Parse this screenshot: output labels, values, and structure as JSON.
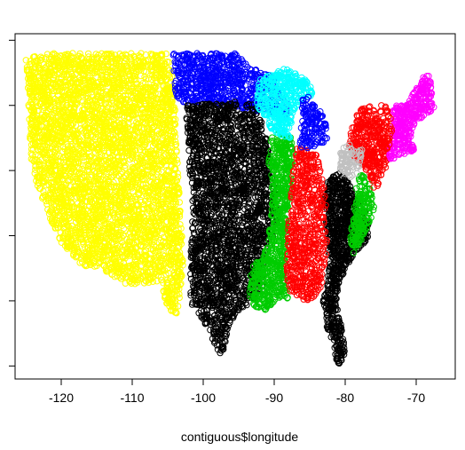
{
  "chart_data": {
    "type": "scatter",
    "title": "",
    "xlabel": "contiguous$longitude",
    "ylabel": "",
    "xlim": [
      -126.5,
      -64.5
    ],
    "ylim": [
      24.0,
      50.5
    ],
    "x_ticks": [
      -120,
      -110,
      -100,
      -90,
      -80,
      -70
    ],
    "x_tick_labels": [
      "-120",
      "-110",
      "-100",
      "-90",
      "-80",
      "-70"
    ],
    "y_ticks": [
      25,
      30,
      35,
      40,
      45,
      50
    ],
    "y_tick_labels_visible": false,
    "marker": "open-circle",
    "grid": false,
    "series": [
      {
        "color": "#FFFF00",
        "region_polygon": [
          [
            -125,
            48.5
          ],
          [
            -123,
            49.0
          ],
          [
            -105,
            49.0
          ],
          [
            -104,
            46
          ],
          [
            -103.8,
            42
          ],
          [
            -103.3,
            38
          ],
          [
            -102.8,
            33
          ],
          [
            -103.5,
            29
          ],
          [
            -105,
            29.3
          ],
          [
            -106,
            31.5
          ],
          [
            -108.5,
            31.3
          ],
          [
            -111,
            31.3
          ],
          [
            -114.5,
            32.5
          ],
          [
            -117,
            32.7
          ],
          [
            -120,
            34.5
          ],
          [
            -121.7,
            36.5
          ],
          [
            -123.5,
            39
          ],
          [
            -124.3,
            41
          ],
          [
            -124.5,
            44
          ],
          [
            -124.8,
            47
          ]
        ]
      },
      {
        "color": "#0000FF",
        "region_polygon": [
          [
            -104.3,
            49.0
          ],
          [
            -95.5,
            49.0
          ],
          [
            -94.8,
            48.6
          ],
          [
            -92,
            47.5
          ],
          [
            -90.5,
            47.4
          ],
          [
            -89.3,
            46.5
          ],
          [
            -88,
            45
          ],
          [
            -88.3,
            44
          ],
          [
            -92,
            44.5
          ],
          [
            -96.5,
            45
          ],
          [
            -100,
            45.2
          ],
          [
            -103.8,
            45.2
          ]
        ]
      },
      {
        "color": "#000000",
        "region_polygon": [
          [
            -102.5,
            45.0
          ],
          [
            -95.5,
            45.3
          ],
          [
            -92.5,
            45.0
          ],
          [
            -91.3,
            43
          ],
          [
            -90.5,
            41
          ],
          [
            -89.6,
            38
          ],
          [
            -89.5,
            36
          ],
          [
            -91.2,
            33
          ],
          [
            -91.8,
            30.5
          ],
          [
            -93.5,
            29.8
          ],
          [
            -95,
            29.3
          ],
          [
            -96.5,
            28
          ],
          [
            -97,
            26.5
          ],
          [
            -97.3,
            25.9
          ],
          [
            -98,
            26
          ],
          [
            -99,
            27.5
          ],
          [
            -100.5,
            29
          ],
          [
            -101.5,
            29.5
          ],
          [
            -102,
            31
          ],
          [
            -101.5,
            37
          ],
          [
            -102,
            41
          ]
        ]
      },
      {
        "color": "#000000",
        "region_polygon": [
          [
            -82.5,
            39.3
          ],
          [
            -80.5,
            39.9
          ],
          [
            -79.5,
            39
          ],
          [
            -78,
            37.3
          ],
          [
            -77,
            36.8
          ],
          [
            -76.5,
            35.3
          ],
          [
            -77,
            34.6
          ],
          [
            -78.5,
            33.8
          ],
          [
            -80,
            32.5
          ],
          [
            -81,
            31
          ],
          [
            -81.3,
            29.8
          ],
          [
            -80.3,
            27.5
          ],
          [
            -80.1,
            26
          ],
          [
            -80.4,
            25.2
          ],
          [
            -81.1,
            25.2
          ],
          [
            -81.7,
            26.5
          ],
          [
            -82.6,
            28
          ],
          [
            -82.8,
            29
          ],
          [
            -83.2,
            30
          ],
          [
            -82.5,
            31
          ],
          [
            -82.3,
            33
          ],
          [
            -82.7,
            36
          ],
          [
            -83.1,
            38
          ]
        ]
      },
      {
        "color": "#00CC00",
        "region_polygon": [
          [
            -88.8,
            43.0
          ],
          [
            -87.6,
            42.5
          ],
          [
            -87.3,
            41
          ],
          [
            -87.8,
            38
          ],
          [
            -88.2,
            36
          ],
          [
            -88.4,
            34
          ],
          [
            -88.5,
            31.5
          ],
          [
            -88.1,
            30.2
          ],
          [
            -89.5,
            30.2
          ],
          [
            -91.2,
            29.3
          ],
          [
            -92.8,
            29.5
          ],
          [
            -93.5,
            30.5
          ],
          [
            -93.2,
            32.5
          ],
          [
            -91.5,
            33.5
          ],
          [
            -90.5,
            36
          ],
          [
            -90.3,
            38.5
          ],
          [
            -90.8,
            40.5
          ],
          [
            -90.5,
            42.5
          ]
        ]
      },
      {
        "color": "#00CC00",
        "region_polygon": [
          [
            -78.0,
            39.7
          ],
          [
            -76.8,
            39.5
          ],
          [
            -76.2,
            38
          ],
          [
            -75.8,
            37
          ],
          [
            -76.3,
            36
          ],
          [
            -77.5,
            35
          ],
          [
            -78,
            34
          ],
          [
            -79,
            33.5
          ],
          [
            -79.3,
            35
          ],
          [
            -78.8,
            37
          ],
          [
            -78.6,
            38.6
          ]
        ]
      },
      {
        "color": "#FF0000",
        "region_polygon": [
          [
            -86.8,
            41.7
          ],
          [
            -85.0,
            41.8
          ],
          [
            -84.2,
            41.6
          ],
          [
            -83.5,
            40.5
          ],
          [
            -82.9,
            39
          ],
          [
            -82.6,
            36
          ],
          [
            -82.5,
            34
          ],
          [
            -82.9,
            32.8
          ],
          [
            -83.3,
            31.3
          ],
          [
            -84,
            30.4
          ],
          [
            -85.5,
            30
          ],
          [
            -86.8,
            30.3
          ],
          [
            -87.8,
            30.7
          ],
          [
            -88.3,
            32
          ],
          [
            -88.1,
            35
          ],
          [
            -87.8,
            38
          ],
          [
            -87.4,
            40
          ]
        ]
      },
      {
        "color": "#FF0000",
        "region_polygon": [
          [
            -78.0,
            44.7
          ],
          [
            -76.0,
            45.0
          ],
          [
            -75.3,
            44
          ],
          [
            -74.5,
            42
          ],
          [
            -74.0,
            41
          ],
          [
            -74.3,
            40.2
          ],
          [
            -75,
            39.6
          ],
          [
            -75.3,
            39
          ],
          [
            -75.9,
            38.3
          ],
          [
            -76.4,
            39.3
          ],
          [
            -77.2,
            40.2
          ],
          [
            -78.3,
            40.5
          ],
          [
            -79,
            41.4
          ],
          [
            -79.5,
            42
          ],
          [
            -79.2,
            43.2
          ]
        ]
      },
      {
        "color": "#00FFFF",
        "region_polygon": [
          [
            -92.0,
            47.0
          ],
          [
            -90.5,
            47.4
          ],
          [
            -88.5,
            47.9
          ],
          [
            -86.5,
            47.3
          ],
          [
            -85,
            46.7
          ],
          [
            -84.6,
            45.8
          ],
          [
            -86.3,
            45.4
          ],
          [
            -87.2,
            44.6
          ],
          [
            -87.6,
            43.5
          ],
          [
            -87.8,
            42.5
          ],
          [
            -88.8,
            42.5
          ],
          [
            -90.3,
            43
          ],
          [
            -91.1,
            44
          ],
          [
            -92.5,
            45
          ],
          [
            -92.3,
            46.2
          ]
        ]
      },
      {
        "color": "#0000FF",
        "region_polygon": [
          [
            -86.0,
            45.6
          ],
          [
            -84.8,
            45.8
          ],
          [
            -84.4,
            45
          ],
          [
            -83.4,
            44.6
          ],
          [
            -82.6,
            43.3
          ],
          [
            -82.5,
            42.5
          ],
          [
            -83.2,
            41.9
          ],
          [
            -84.6,
            41.7
          ],
          [
            -86.5,
            41.7
          ],
          [
            -86.3,
            43
          ],
          [
            -86.1,
            44.5
          ]
        ]
      },
      {
        "color": "#C0C0C0",
        "region_polygon": [
          [
            -79.8,
            42.0
          ],
          [
            -77.7,
            42.0
          ],
          [
            -77.5,
            41.0
          ],
          [
            -77.8,
            39.8
          ],
          [
            -79.2,
            39.4
          ],
          [
            -80.5,
            39.7
          ],
          [
            -81,
            40.5
          ],
          [
            -80.6,
            41.5
          ]
        ]
      },
      {
        "color": "#FF00FF",
        "region_polygon": [
          [
            -73.3,
            45.0
          ],
          [
            -71.5,
            45.0
          ],
          [
            -70.8,
            45.6
          ],
          [
            -69.7,
            46.5
          ],
          [
            -69.2,
            47.2
          ],
          [
            -68.2,
            47.3
          ],
          [
            -67.8,
            46.5
          ],
          [
            -67.8,
            45.2
          ],
          [
            -67.1,
            44.8
          ],
          [
            -68.6,
            44.3
          ],
          [
            -69.7,
            43.8
          ],
          [
            -70.7,
            43.0
          ],
          [
            -70.8,
            42.2
          ],
          [
            -69.9,
            41.6
          ],
          [
            -71.4,
            41.3
          ],
          [
            -72.5,
            41.1
          ],
          [
            -73.7,
            40.8
          ],
          [
            -73.9,
            41.6
          ],
          [
            -73.5,
            42.6
          ],
          [
            -73.3,
            43.6
          ]
        ]
      },
      {
        "color": "#FF0000",
        "region_polygon": [
          [
            -75.0,
            45.0
          ],
          [
            -74.0,
            45.0
          ],
          [
            -73.4,
            43.6
          ],
          [
            -73.4,
            42.3
          ],
          [
            -74.1,
            41.5
          ],
          [
            -75.1,
            41.9
          ],
          [
            -75.3,
            42.9
          ],
          [
            -75.2,
            44.2
          ]
        ]
      }
    ]
  }
}
